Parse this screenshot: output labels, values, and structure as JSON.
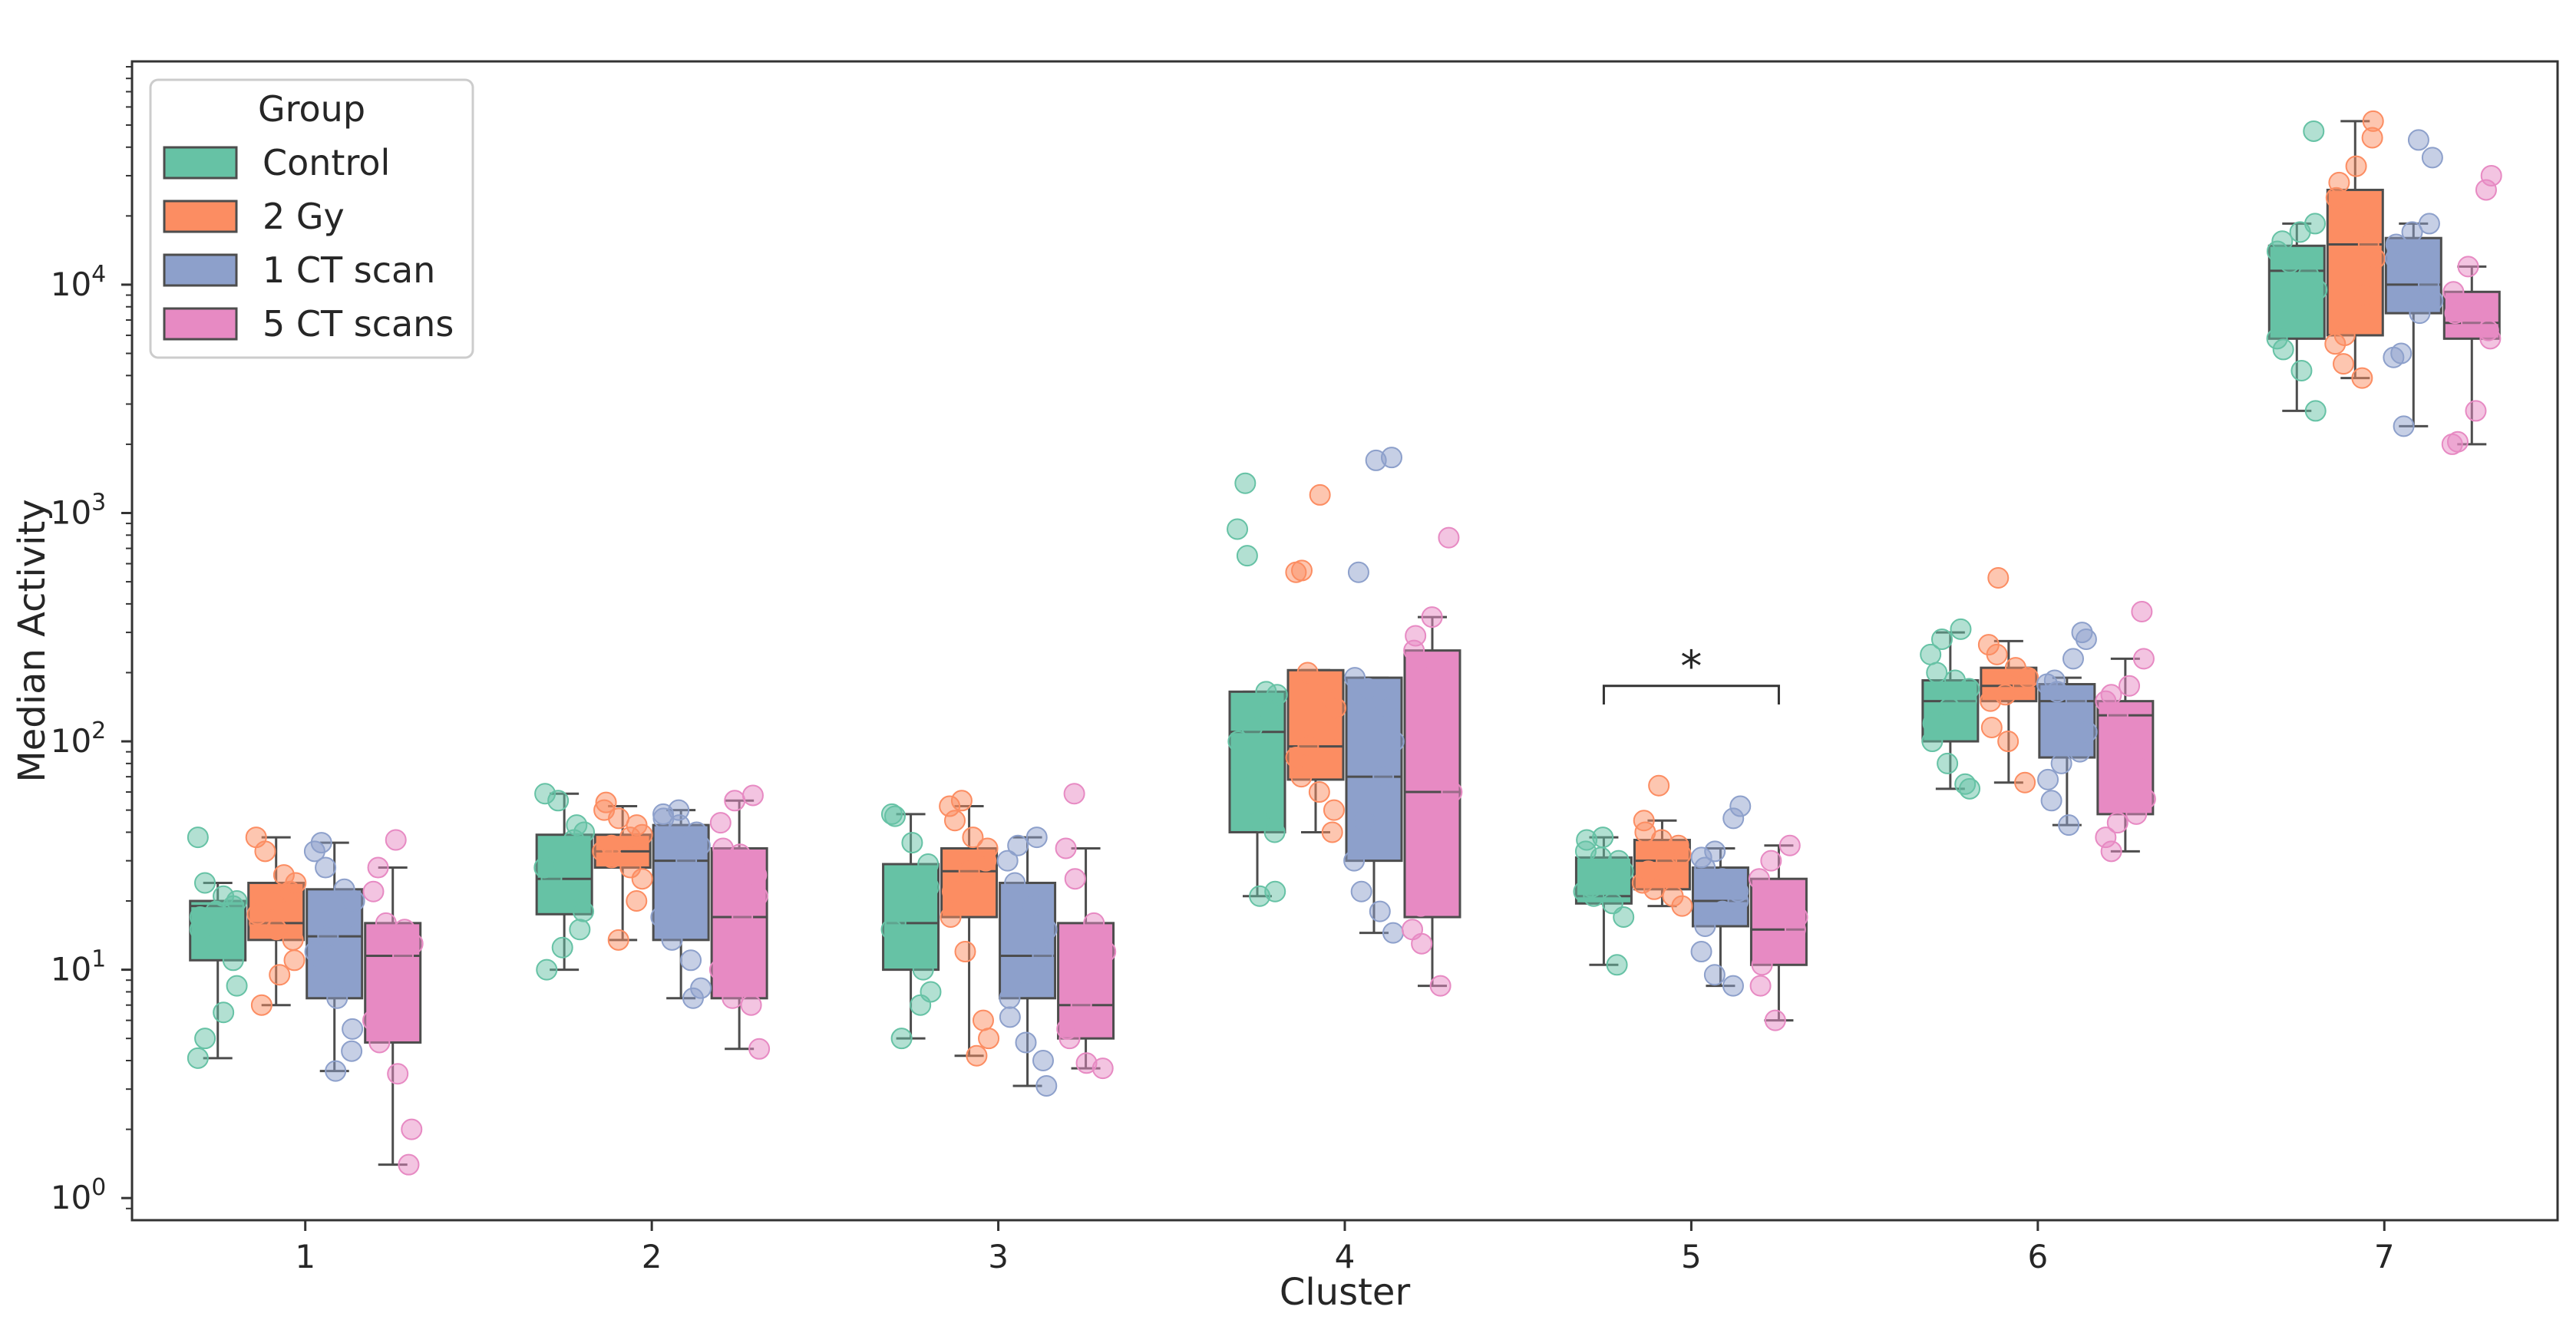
{
  "chart_data": {
    "type": "box",
    "title": "",
    "xlabel": "Cluster",
    "ylabel": "Median Activity",
    "yscale": "log",
    "ylim": [
      0.8,
      95000
    ],
    "yticks": [
      {
        "value": 1,
        "label_base": "10",
        "label_exp": "0"
      },
      {
        "value": 10,
        "label_base": "10",
        "label_exp": "1"
      },
      {
        "value": 100,
        "label_base": "10",
        "label_exp": "2"
      },
      {
        "value": 1000,
        "label_base": "10",
        "label_exp": "3"
      },
      {
        "value": 10000,
        "label_base": "10",
        "label_exp": "4"
      }
    ],
    "categories": [
      "1",
      "2",
      "3",
      "4",
      "5",
      "6",
      "7"
    ],
    "legend": {
      "title": "Group",
      "position": "top-left"
    },
    "series": [
      {
        "name": "Control",
        "color": "#66c2a5",
        "boxes": [
          {
            "whislo": 4.1,
            "q1": 11,
            "med": 19,
            "q3": 20,
            "whishi": 24,
            "points": [
              4.1,
              5,
              6.5,
              8.5,
              11,
              13,
              15,
              17,
              18,
              19,
              20,
              21,
              24,
              38
            ]
          },
          {
            "whislo": 10,
            "q1": 17.5,
            "med": 25,
            "q3": 39,
            "whishi": 59,
            "points": [
              10,
              12.5,
              15,
              18,
              22,
              25,
              28,
              33,
              37,
              40,
              43,
              55,
              59
            ]
          },
          {
            "whislo": 5,
            "q1": 10,
            "med": 16,
            "q3": 29,
            "whishi": 48,
            "points": [
              5,
              7,
              8,
              10,
              12,
              15,
              16,
              19,
              23,
              29,
              36,
              47,
              48
            ]
          },
          {
            "whislo": 21,
            "q1": 40,
            "med": 110,
            "q3": 165,
            "whishi": 165,
            "points": [
              21,
              22,
              40,
              45,
              75,
              100,
              115,
              135,
              160,
              165,
              650,
              850,
              1350
            ]
          },
          {
            "whislo": 10.5,
            "q1": 19.5,
            "med": 21,
            "q3": 31,
            "whishi": 38,
            "points": [
              10.5,
              17,
              19.5,
              21,
              22,
              23,
              25,
              27,
              30,
              31,
              33,
              37,
              38
            ]
          },
          {
            "whislo": 62,
            "q1": 100,
            "med": 150,
            "q3": 185,
            "whishi": 300,
            "points": [
              62,
              65,
              80,
              100,
              120,
              140,
              150,
              170,
              185,
              200,
              240,
              280,
              310
            ]
          },
          {
            "whislo": 2800,
            "q1": 5800,
            "med": 11500,
            "q3": 14800,
            "whishi": 18500,
            "points": [
              2800,
              4200,
              5200,
              5800,
              7000,
              8500,
              9500,
              11000,
              12500,
              14000,
              15500,
              17000,
              18500,
              47000
            ]
          }
        ]
      },
      {
        "name": "2 Gy",
        "color": "#fc8d62",
        "boxes": [
          {
            "whislo": 7,
            "q1": 13.5,
            "med": 16,
            "q3": 24,
            "whishi": 38,
            "points": [
              7,
              9.5,
              11,
              13.5,
              15,
              16,
              17.5,
              20,
              22,
              24,
              26,
              33,
              38
            ]
          },
          {
            "whislo": 13.5,
            "q1": 28,
            "med": 33,
            "q3": 39,
            "whishi": 52,
            "points": [
              13.5,
              20,
              25,
              28,
              31,
              33,
              35,
              38,
              39,
              43,
              46,
              50,
              54
            ]
          },
          {
            "whislo": 4.2,
            "q1": 17,
            "med": 27,
            "q3": 34,
            "whishi": 52,
            "points": [
              4.2,
              5,
              6,
              12,
              17,
              22,
              27,
              30,
              34,
              38,
              45,
              52,
              55
            ]
          },
          {
            "whislo": 40,
            "q1": 68,
            "med": 95,
            "q3": 205,
            "whishi": 205,
            "points": [
              40,
              50,
              60,
              70,
              85,
              95,
              110,
              140,
              180,
              200,
              550,
              560,
              1200
            ]
          },
          {
            "whislo": 19,
            "q1": 22.5,
            "med": 30,
            "q3": 37,
            "whishi": 45,
            "points": [
              19,
              21,
              22.5,
              24,
              27,
              30,
              32,
              35,
              37,
              40,
              45,
              64
            ]
          },
          {
            "whislo": 66,
            "q1": 150,
            "med": 175,
            "q3": 210,
            "whishi": 275,
            "points": [
              66,
              100,
              115,
              150,
              160,
              175,
              190,
              210,
              240,
              265,
              520
            ]
          },
          {
            "whislo": 3900,
            "q1": 6000,
            "med": 15000,
            "q3": 26000,
            "whishi": 52000,
            "points": [
              3900,
              4500,
              5500,
              6000,
              9000,
              13000,
              15000,
              19000,
              24000,
              28000,
              33000,
              44000,
              52000
            ]
          }
        ]
      },
      {
        "name": "1 CT scan",
        "color": "#8da0cb",
        "boxes": [
          {
            "whislo": 3.6,
            "q1": 7.5,
            "med": 14,
            "q3": 22.5,
            "whishi": 36,
            "points": [
              3.6,
              4.4,
              5.5,
              7.5,
              9.5,
              12,
              14,
              17,
              20,
              22.5,
              28,
              33,
              36
            ]
          },
          {
            "whislo": 7.5,
            "q1": 13.5,
            "med": 30,
            "q3": 43,
            "whishi": 50,
            "points": [
              7.5,
              8.3,
              11,
              13.5,
              17,
              24,
              30,
              35,
              40,
              43,
              46,
              48,
              50
            ]
          },
          {
            "whislo": 3.1,
            "q1": 7.5,
            "med": 11.5,
            "q3": 24,
            "whishi": 38,
            "points": [
              3.1,
              4,
              4.8,
              6.2,
              7.5,
              9.5,
              11.5,
              15,
              19,
              24,
              30,
              35,
              38
            ]
          },
          {
            "whislo": 14.5,
            "q1": 30,
            "med": 70,
            "q3": 190,
            "whishi": 190,
            "points": [
              14.5,
              18,
              22,
              30,
              45,
              70,
              100,
              140,
              170,
              190,
              550,
              1700,
              1750
            ]
          },
          {
            "whislo": 8.5,
            "q1": 15.5,
            "med": 20,
            "q3": 28,
            "whishi": 34,
            "points": [
              8.5,
              9.5,
              12,
              15.5,
              18,
              20,
              22,
              25,
              28,
              31,
              33,
              46,
              52
            ]
          },
          {
            "whislo": 43,
            "q1": 85,
            "med": 150,
            "q3": 178,
            "whishi": 190,
            "points": [
              43,
              55,
              68,
              80,
              90,
              110,
              150,
              165,
              178,
              185,
              230,
              280,
              300
            ]
          },
          {
            "whislo": 2400,
            "q1": 7500,
            "med": 10000,
            "q3": 16000,
            "whishi": 18500,
            "points": [
              2400,
              4800,
              5000,
              7500,
              8500,
              10000,
              11500,
              13000,
              15000,
              17000,
              18500,
              36000,
              43000
            ]
          }
        ]
      },
      {
        "name": "5 CT scans",
        "color": "#e78ac3",
        "boxes": [
          {
            "whislo": 1.4,
            "q1": 4.8,
            "med": 11.5,
            "q3": 16,
            "whishi": 28,
            "points": [
              1.4,
              2,
              3.5,
              4.8,
              6,
              8,
              11.5,
              13,
              15,
              16,
              22,
              28,
              37
            ]
          },
          {
            "whislo": 4.5,
            "q1": 7.5,
            "med": 17,
            "q3": 34,
            "whishi": 55,
            "points": [
              4.5,
              7,
              7.5,
              10,
              13,
              17,
              21,
              26,
              32,
              34,
              44,
              55,
              58
            ]
          },
          {
            "whislo": 3.7,
            "q1": 5,
            "med": 7,
            "q3": 16,
            "whishi": 34,
            "points": [
              3.7,
              3.9,
              5,
              5.5,
              7,
              9,
              12,
              16,
              25,
              34,
              59
            ]
          },
          {
            "whislo": 8.5,
            "q1": 17,
            "med": 60,
            "q3": 250,
            "whishi": 350,
            "points": [
              8.5,
              13,
              15,
              19,
              25,
              60,
              120,
              190,
              250,
              290,
              350,
              780
            ]
          },
          {
            "whislo": 6,
            "q1": 10.5,
            "med": 15,
            "q3": 25,
            "whishi": 35,
            "points": [
              6,
              8.5,
              10.5,
              12,
              15,
              17,
              19,
              22,
              25,
              30,
              35
            ]
          },
          {
            "whislo": 33,
            "q1": 48,
            "med": 130,
            "q3": 150,
            "whishi": 230,
            "points": [
              33,
              38,
              44,
              48,
              56,
              90,
              130,
              150,
              160,
              175,
              230,
              370
            ]
          },
          {
            "whislo": 2000,
            "q1": 5800,
            "med": 6800,
            "q3": 9300,
            "whishi": 12000,
            "points": [
              2000,
              2050,
              2800,
              5800,
              6300,
              6800,
              7500,
              9300,
              12000,
              26000,
              30000
            ]
          }
        ]
      }
    ],
    "annotations": [
      {
        "type": "significance",
        "category_index": 4,
        "from_series": 0,
        "to_series": 3,
        "y": 175,
        "tick_y": 145,
        "text": "*"
      }
    ]
  }
}
